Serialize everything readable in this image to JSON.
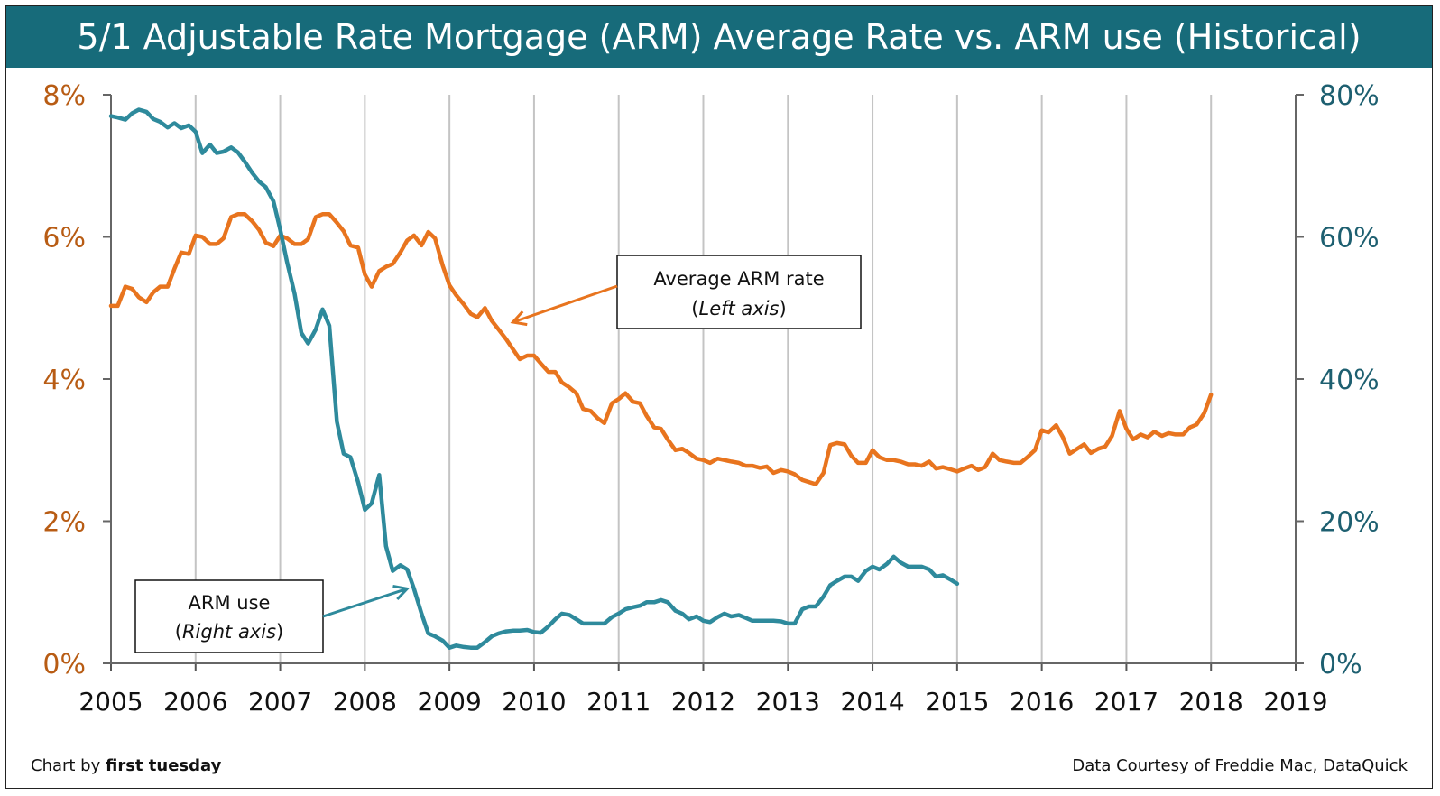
{
  "chart_data": {
    "type": "line",
    "title": "5/1 Adjustable Rate Mortgage (ARM) Average Rate vs. ARM use (Historical)",
    "x_ticks": [
      "2005",
      "2006",
      "2007",
      "2008",
      "2009",
      "2010",
      "2011",
      "2012",
      "2013",
      "2014",
      "2015",
      "2016",
      "2017",
      "2018",
      "2019"
    ],
    "xlim": [
      2005,
      2019
    ],
    "y_left": {
      "ticks": [
        "0%",
        "2%",
        "4%",
        "6%",
        "8%"
      ],
      "tick_values": [
        0,
        2,
        4,
        6,
        8
      ],
      "ylim": [
        0,
        8
      ],
      "color": "#b85c14"
    },
    "y_right": {
      "ticks": [
        "0%",
        "20%",
        "40%",
        "60%",
        "80%"
      ],
      "tick_values": [
        0,
        20,
        40,
        60,
        80
      ],
      "ylim": [
        0,
        80
      ],
      "color": "#1d5f70"
    },
    "grid": "vertical",
    "series": [
      {
        "name": "Average ARM rate",
        "axis": "left",
        "color": "#e8741e",
        "points": [
          [
            2005.0,
            5.03
          ],
          [
            2005.08,
            5.03
          ],
          [
            2005.17,
            5.3
          ],
          [
            2005.25,
            5.27
          ],
          [
            2005.33,
            5.15
          ],
          [
            2005.42,
            5.08
          ],
          [
            2005.5,
            5.22
          ],
          [
            2005.58,
            5.3
          ],
          [
            2005.67,
            5.3
          ],
          [
            2005.75,
            5.55
          ],
          [
            2005.83,
            5.78
          ],
          [
            2005.92,
            5.76
          ],
          [
            2006.0,
            6.02
          ],
          [
            2006.08,
            6.0
          ],
          [
            2006.17,
            5.9
          ],
          [
            2006.25,
            5.9
          ],
          [
            2006.33,
            5.98
          ],
          [
            2006.42,
            6.28
          ],
          [
            2006.5,
            6.32
          ],
          [
            2006.58,
            6.32
          ],
          [
            2006.67,
            6.22
          ],
          [
            2006.75,
            6.1
          ],
          [
            2006.83,
            5.92
          ],
          [
            2006.92,
            5.87
          ],
          [
            2007.0,
            6.02
          ],
          [
            2007.08,
            5.98
          ],
          [
            2007.17,
            5.9
          ],
          [
            2007.25,
            5.9
          ],
          [
            2007.33,
            5.97
          ],
          [
            2007.42,
            6.28
          ],
          [
            2007.5,
            6.32
          ],
          [
            2007.58,
            6.32
          ],
          [
            2007.67,
            6.2
          ],
          [
            2007.75,
            6.08
          ],
          [
            2007.83,
            5.88
          ],
          [
            2007.92,
            5.85
          ],
          [
            2008.0,
            5.47
          ],
          [
            2008.08,
            5.3
          ],
          [
            2008.17,
            5.52
          ],
          [
            2008.25,
            5.58
          ],
          [
            2008.33,
            5.62
          ],
          [
            2008.42,
            5.78
          ],
          [
            2008.5,
            5.95
          ],
          [
            2008.58,
            6.02
          ],
          [
            2008.67,
            5.88
          ],
          [
            2008.75,
            6.07
          ],
          [
            2008.83,
            5.98
          ],
          [
            2008.92,
            5.6
          ],
          [
            2009.0,
            5.32
          ],
          [
            2009.08,
            5.18
          ],
          [
            2009.17,
            5.05
          ],
          [
            2009.25,
            4.92
          ],
          [
            2009.33,
            4.87
          ],
          [
            2009.42,
            5.0
          ],
          [
            2009.5,
            4.82
          ],
          [
            2009.58,
            4.7
          ],
          [
            2009.67,
            4.56
          ],
          [
            2009.75,
            4.42
          ],
          [
            2009.83,
            4.28
          ],
          [
            2009.92,
            4.33
          ],
          [
            2010.0,
            4.33
          ],
          [
            2010.08,
            4.22
          ],
          [
            2010.17,
            4.1
          ],
          [
            2010.25,
            4.1
          ],
          [
            2010.33,
            3.95
          ],
          [
            2010.42,
            3.88
          ],
          [
            2010.5,
            3.8
          ],
          [
            2010.58,
            3.58
          ],
          [
            2010.67,
            3.55
          ],
          [
            2010.75,
            3.45
          ],
          [
            2010.83,
            3.38
          ],
          [
            2010.92,
            3.66
          ],
          [
            2011.0,
            3.72
          ],
          [
            2011.08,
            3.8
          ],
          [
            2011.17,
            3.68
          ],
          [
            2011.25,
            3.66
          ],
          [
            2011.33,
            3.48
          ],
          [
            2011.42,
            3.32
          ],
          [
            2011.5,
            3.3
          ],
          [
            2011.58,
            3.15
          ],
          [
            2011.67,
            3.0
          ],
          [
            2011.75,
            3.02
          ],
          [
            2011.83,
            2.96
          ],
          [
            2011.92,
            2.88
          ],
          [
            2012.0,
            2.86
          ],
          [
            2012.08,
            2.82
          ],
          [
            2012.17,
            2.88
          ],
          [
            2012.25,
            2.86
          ],
          [
            2012.33,
            2.84
          ],
          [
            2012.42,
            2.82
          ],
          [
            2012.5,
            2.78
          ],
          [
            2012.58,
            2.78
          ],
          [
            2012.67,
            2.75
          ],
          [
            2012.75,
            2.77
          ],
          [
            2012.83,
            2.68
          ],
          [
            2012.92,
            2.72
          ],
          [
            2013.0,
            2.7
          ],
          [
            2013.08,
            2.66
          ],
          [
            2013.17,
            2.58
          ],
          [
            2013.25,
            2.55
          ],
          [
            2013.33,
            2.52
          ],
          [
            2013.42,
            2.68
          ],
          [
            2013.5,
            3.07
          ],
          [
            2013.58,
            3.1
          ],
          [
            2013.67,
            3.08
          ],
          [
            2013.75,
            2.92
          ],
          [
            2013.83,
            2.82
          ],
          [
            2013.92,
            2.82
          ],
          [
            2014.0,
            3.0
          ],
          [
            2014.08,
            2.9
          ],
          [
            2014.17,
            2.86
          ],
          [
            2014.25,
            2.86
          ],
          [
            2014.33,
            2.84
          ],
          [
            2014.42,
            2.8
          ],
          [
            2014.5,
            2.8
          ],
          [
            2014.58,
            2.78
          ],
          [
            2014.67,
            2.84
          ],
          [
            2014.75,
            2.74
          ],
          [
            2014.83,
            2.76
          ],
          [
            2014.92,
            2.73
          ],
          [
            2015.0,
            2.7
          ],
          [
            2015.08,
            2.74
          ],
          [
            2015.17,
            2.78
          ],
          [
            2015.25,
            2.72
          ],
          [
            2015.33,
            2.76
          ],
          [
            2015.42,
            2.95
          ],
          [
            2015.5,
            2.86
          ],
          [
            2015.58,
            2.84
          ],
          [
            2015.67,
            2.82
          ],
          [
            2015.75,
            2.82
          ],
          [
            2015.83,
            2.9
          ],
          [
            2015.92,
            3.0
          ],
          [
            2016.0,
            3.28
          ],
          [
            2016.08,
            3.25
          ],
          [
            2016.17,
            3.35
          ],
          [
            2016.25,
            3.18
          ],
          [
            2016.33,
            2.95
          ],
          [
            2016.42,
            3.02
          ],
          [
            2016.5,
            3.08
          ],
          [
            2016.58,
            2.96
          ],
          [
            2016.67,
            3.02
          ],
          [
            2016.75,
            3.05
          ],
          [
            2016.83,
            3.2
          ],
          [
            2016.92,
            3.55
          ],
          [
            2017.0,
            3.3
          ],
          [
            2017.08,
            3.15
          ],
          [
            2017.17,
            3.22
          ],
          [
            2017.25,
            3.18
          ],
          [
            2017.33,
            3.26
          ],
          [
            2017.42,
            3.2
          ],
          [
            2017.5,
            3.24
          ],
          [
            2017.58,
            3.22
          ],
          [
            2017.67,
            3.22
          ],
          [
            2017.75,
            3.32
          ],
          [
            2017.83,
            3.36
          ],
          [
            2017.92,
            3.52
          ],
          [
            2018.0,
            3.78
          ]
        ]
      },
      {
        "name": "ARM use",
        "axis": "right",
        "color": "#2e8a9c",
        "points": [
          [
            2005.0,
            77.0
          ],
          [
            2005.08,
            76.8
          ],
          [
            2005.17,
            76.5
          ],
          [
            2005.25,
            77.4
          ],
          [
            2005.33,
            77.9
          ],
          [
            2005.42,
            77.6
          ],
          [
            2005.5,
            76.6
          ],
          [
            2005.58,
            76.2
          ],
          [
            2005.67,
            75.4
          ],
          [
            2005.75,
            76.0
          ],
          [
            2005.83,
            75.3
          ],
          [
            2005.92,
            75.7
          ],
          [
            2006.0,
            74.8
          ],
          [
            2006.08,
            71.8
          ],
          [
            2006.17,
            73.0
          ],
          [
            2006.25,
            71.8
          ],
          [
            2006.33,
            72.0
          ],
          [
            2006.42,
            72.6
          ],
          [
            2006.5,
            71.9
          ],
          [
            2006.58,
            70.6
          ],
          [
            2006.67,
            69.0
          ],
          [
            2006.75,
            67.8
          ],
          [
            2006.83,
            67.0
          ],
          [
            2006.92,
            65.0
          ],
          [
            2007.0,
            61.0
          ],
          [
            2007.08,
            56.5
          ],
          [
            2007.17,
            52.0
          ],
          [
            2007.25,
            46.5
          ],
          [
            2007.33,
            45.0
          ],
          [
            2007.42,
            47.0
          ],
          [
            2007.5,
            49.8
          ],
          [
            2007.58,
            47.5
          ],
          [
            2007.67,
            34.0
          ],
          [
            2007.75,
            29.5
          ],
          [
            2007.83,
            29.0
          ],
          [
            2007.92,
            25.5
          ],
          [
            2008.0,
            21.6
          ],
          [
            2008.08,
            22.5
          ],
          [
            2008.17,
            26.5
          ],
          [
            2008.25,
            16.5
          ],
          [
            2008.33,
            13.0
          ],
          [
            2008.42,
            13.8
          ],
          [
            2008.5,
            13.2
          ],
          [
            2008.58,
            10.5
          ],
          [
            2008.67,
            7.0
          ],
          [
            2008.75,
            4.2
          ],
          [
            2008.83,
            3.8
          ],
          [
            2008.92,
            3.2
          ],
          [
            2009.0,
            2.2
          ],
          [
            2009.08,
            2.5
          ],
          [
            2009.17,
            2.3
          ],
          [
            2009.25,
            2.2
          ],
          [
            2009.33,
            2.2
          ],
          [
            2009.42,
            3.0
          ],
          [
            2009.5,
            3.8
          ],
          [
            2009.58,
            4.2
          ],
          [
            2009.67,
            4.5
          ],
          [
            2009.75,
            4.6
          ],
          [
            2009.83,
            4.6
          ],
          [
            2009.92,
            4.7
          ],
          [
            2010.0,
            4.4
          ],
          [
            2010.08,
            4.3
          ],
          [
            2010.17,
            5.2
          ],
          [
            2010.25,
            6.2
          ],
          [
            2010.33,
            7.0
          ],
          [
            2010.42,
            6.8
          ],
          [
            2010.5,
            6.2
          ],
          [
            2010.58,
            5.6
          ],
          [
            2010.67,
            5.6
          ],
          [
            2010.75,
            5.6
          ],
          [
            2010.83,
            5.6
          ],
          [
            2010.92,
            6.5
          ],
          [
            2011.0,
            7.0
          ],
          [
            2011.08,
            7.6
          ],
          [
            2011.17,
            7.9
          ],
          [
            2011.25,
            8.1
          ],
          [
            2011.33,
            8.6
          ],
          [
            2011.42,
            8.6
          ],
          [
            2011.5,
            8.9
          ],
          [
            2011.58,
            8.6
          ],
          [
            2011.67,
            7.4
          ],
          [
            2011.75,
            7.0
          ],
          [
            2011.83,
            6.2
          ],
          [
            2011.92,
            6.6
          ],
          [
            2012.0,
            6.0
          ],
          [
            2012.08,
            5.8
          ],
          [
            2012.17,
            6.5
          ],
          [
            2012.25,
            7.0
          ],
          [
            2012.33,
            6.6
          ],
          [
            2012.42,
            6.8
          ],
          [
            2012.5,
            6.4
          ],
          [
            2012.58,
            6.0
          ],
          [
            2012.67,
            6.0
          ],
          [
            2012.75,
            6.0
          ],
          [
            2012.83,
            6.0
          ],
          [
            2012.92,
            5.9
          ],
          [
            2013.0,
            5.6
          ],
          [
            2013.08,
            5.6
          ],
          [
            2013.17,
            7.6
          ],
          [
            2013.25,
            8.0
          ],
          [
            2013.33,
            8.0
          ],
          [
            2013.42,
            9.4
          ],
          [
            2013.5,
            11.0
          ],
          [
            2013.58,
            11.6
          ],
          [
            2013.67,
            12.2
          ],
          [
            2013.75,
            12.2
          ],
          [
            2013.83,
            11.6
          ],
          [
            2013.92,
            13.0
          ],
          [
            2014.0,
            13.6
          ],
          [
            2014.08,
            13.2
          ],
          [
            2014.17,
            14.0
          ],
          [
            2014.25,
            15.0
          ],
          [
            2014.33,
            14.2
          ],
          [
            2014.42,
            13.6
          ],
          [
            2014.5,
            13.6
          ],
          [
            2014.58,
            13.6
          ],
          [
            2014.67,
            13.2
          ],
          [
            2014.75,
            12.2
          ],
          [
            2014.83,
            12.4
          ],
          [
            2014.92,
            11.8
          ],
          [
            2015.0,
            11.2
          ]
        ]
      }
    ],
    "annotations": [
      {
        "label": "Average ARM rate",
        "sub": "Left axis",
        "points_to": [
          2009.75,
          4.8
        ]
      },
      {
        "label": "ARM use",
        "sub": "Right axis",
        "points_to": [
          2008.5,
          10.5
        ]
      }
    ]
  },
  "footer": {
    "credit_prefix": "Chart by ",
    "credit_name": "first tuesday",
    "source": "Data Courtesy of Freddie Mac, DataQuick"
  }
}
